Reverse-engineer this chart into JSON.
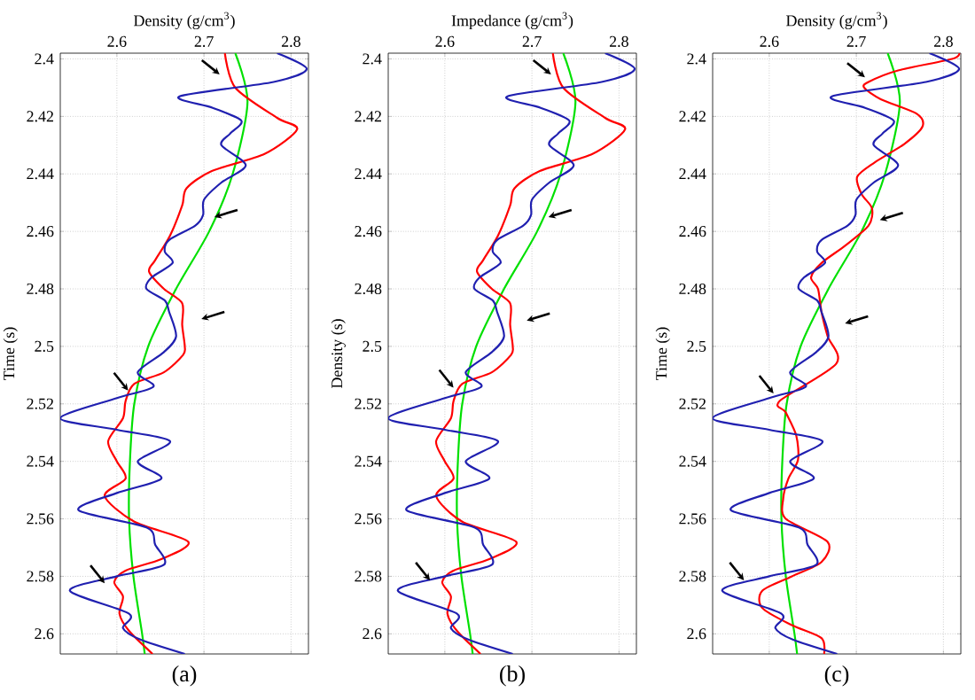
{
  "chart_data": [
    {
      "type": "line",
      "xlabel": "Density (g/cm$^{3}$)",
      "ylabel": "Time (s)",
      "annotations": [
        "(a)"
      ],
      "xlim": [
        2.535,
        2.82
      ],
      "ylim": [
        2.607,
        2.398
      ],
      "xticks": [
        2.6,
        2.7,
        2.8
      ],
      "yticks": [
        2.4,
        2.42,
        2.44,
        2.46,
        2.48,
        2.5,
        2.52,
        2.54,
        2.56,
        2.58,
        2.6
      ],
      "grid": true,
      "series": [
        {
          "color": "#00e000",
          "x": [
            2.736,
            2.75,
            2.733,
            2.706,
            2.668,
            2.636,
            2.62,
            2.615,
            2.614,
            2.619,
            2.629,
            2.632
          ],
          "values": [
            2.398,
            2.415,
            2.44,
            2.46,
            2.48,
            2.5,
            2.52,
            2.54,
            2.56,
            2.58,
            2.6,
            2.607
          ]
        },
        {
          "color": "#ff0000",
          "x": [
            2.724,
            2.736,
            2.784,
            2.807,
            2.77,
            2.709,
            2.68,
            2.675,
            2.661,
            2.644,
            2.637,
            2.654,
            2.675,
            2.675,
            2.678,
            2.676,
            2.654,
            2.62,
            2.61,
            2.607,
            2.59,
            2.6,
            2.61,
            2.586,
            2.62,
            2.682,
            2.651,
            2.61,
            2.597,
            2.607,
            2.603,
            2.614,
            2.641
          ],
          "values": [
            2.398,
            2.41,
            2.4205,
            2.4245,
            2.433,
            2.439,
            2.445,
            2.451,
            2.4615,
            2.47,
            2.474,
            2.48,
            2.485,
            2.4925,
            2.5,
            2.503,
            2.509,
            2.513,
            2.519,
            2.525,
            2.533,
            2.54,
            2.546,
            2.552,
            2.561,
            2.568,
            2.574,
            2.578,
            2.582,
            2.587,
            2.593,
            2.599,
            2.607
          ]
        },
        {
          "color": "#2020b0",
          "x": [
            2.784,
            2.818,
            2.78,
            2.672,
            2.71,
            2.743,
            2.73,
            2.72,
            2.748,
            2.72,
            2.7,
            2.699,
            2.69,
            2.66,
            2.655,
            2.664,
            2.64,
            2.634,
            2.655,
            2.66,
            2.668,
            2.654,
            2.624,
            2.642,
            2.6,
            2.535,
            2.6,
            2.661,
            2.624,
            2.651,
            2.6,
            2.556,
            2.634,
            2.644,
            2.654,
            2.6,
            2.546,
            2.614,
            2.607,
            2.627,
            2.678
          ],
          "values": [
            2.398,
            2.4035,
            2.408,
            2.413,
            2.417,
            2.4215,
            2.426,
            2.43,
            2.437,
            2.443,
            2.449,
            2.4543,
            2.458,
            2.463,
            2.467,
            2.471,
            2.476,
            2.48,
            2.484,
            2.488,
            2.4965,
            2.502,
            2.509,
            2.514,
            2.518,
            2.525,
            2.529,
            2.533,
            2.54,
            2.546,
            2.551,
            2.557,
            2.563,
            2.569,
            2.576,
            2.58,
            2.585,
            2.593,
            2.598,
            2.602,
            2.607
          ]
        }
      ]
    },
    {
      "type": "line",
      "xlabel": "Impedance (g/cm$^{3}$)",
      "ylabel": "Density (s)",
      "annotations": [
        "(b)"
      ],
      "xlim": [
        2.535,
        2.82
      ],
      "ylim": [
        2.607,
        2.398
      ],
      "xticks": [
        2.6,
        2.7,
        2.8
      ],
      "yticks": [
        2.4,
        2.42,
        2.44,
        2.46,
        2.48,
        2.5,
        2.52,
        2.54,
        2.56,
        2.58,
        2.6
      ],
      "grid": true,
      "series": [
        {
          "color": "#00e000",
          "x": [
            2.736,
            2.75,
            2.733,
            2.706,
            2.668,
            2.636,
            2.62,
            2.615,
            2.614,
            2.619,
            2.629,
            2.632
          ],
          "values": [
            2.398,
            2.415,
            2.44,
            2.46,
            2.48,
            2.5,
            2.52,
            2.54,
            2.56,
            2.58,
            2.6,
            2.607
          ]
        },
        {
          "color": "#ff0000",
          "x": [
            2.724,
            2.736,
            2.784,
            2.807,
            2.77,
            2.709,
            2.68,
            2.675,
            2.661,
            2.644,
            2.637,
            2.654,
            2.675,
            2.675,
            2.678,
            2.676,
            2.654,
            2.62,
            2.61,
            2.607,
            2.59,
            2.6,
            2.61,
            2.59,
            2.62,
            2.682,
            2.651,
            2.61,
            2.597,
            2.607,
            2.603,
            2.614,
            2.641
          ],
          "values": [
            2.398,
            2.41,
            2.4205,
            2.4245,
            2.433,
            2.439,
            2.445,
            2.451,
            2.4615,
            2.47,
            2.474,
            2.48,
            2.485,
            2.4925,
            2.5,
            2.503,
            2.509,
            2.513,
            2.519,
            2.525,
            2.533,
            2.54,
            2.546,
            2.552,
            2.561,
            2.568,
            2.574,
            2.578,
            2.582,
            2.587,
            2.593,
            2.599,
            2.607
          ]
        },
        {
          "color": "#2020b0",
          "x": [
            2.784,
            2.818,
            2.78,
            2.672,
            2.71,
            2.743,
            2.73,
            2.72,
            2.748,
            2.72,
            2.7,
            2.699,
            2.69,
            2.66,
            2.655,
            2.664,
            2.64,
            2.634,
            2.655,
            2.66,
            2.668,
            2.654,
            2.624,
            2.642,
            2.6,
            2.535,
            2.6,
            2.661,
            2.624,
            2.651,
            2.6,
            2.556,
            2.634,
            2.644,
            2.654,
            2.6,
            2.546,
            2.614,
            2.607,
            2.627,
            2.678
          ],
          "values": [
            2.398,
            2.4035,
            2.408,
            2.413,
            2.417,
            2.4215,
            2.426,
            2.43,
            2.437,
            2.443,
            2.449,
            2.4543,
            2.458,
            2.463,
            2.467,
            2.471,
            2.476,
            2.48,
            2.484,
            2.488,
            2.4965,
            2.502,
            2.509,
            2.514,
            2.518,
            2.525,
            2.529,
            2.533,
            2.54,
            2.546,
            2.551,
            2.557,
            2.563,
            2.569,
            2.576,
            2.58,
            2.585,
            2.593,
            2.598,
            2.602,
            2.607
          ]
        }
      ]
    },
    {
      "type": "line",
      "xlabel": "Density (g/cm$^{3}$)",
      "ylabel": "Time (s)",
      "annotations": [
        "(c)"
      ],
      "xlim": [
        2.535,
        2.82
      ],
      "ylim": [
        2.607,
        2.398
      ],
      "xticks": [
        2.6,
        2.7,
        2.8
      ],
      "yticks": [
        2.4,
        2.42,
        2.44,
        2.46,
        2.48,
        2.5,
        2.52,
        2.54,
        2.56,
        2.58,
        2.6
      ],
      "grid": true,
      "series": [
        {
          "color": "#00e000",
          "x": [
            2.736,
            2.75,
            2.733,
            2.706,
            2.668,
            2.636,
            2.62,
            2.615,
            2.614,
            2.619,
            2.629,
            2.632
          ],
          "values": [
            2.398,
            2.415,
            2.44,
            2.46,
            2.48,
            2.5,
            2.52,
            2.54,
            2.56,
            2.58,
            2.6,
            2.607
          ]
        },
        {
          "color": "#ff0000",
          "x": [
            2.818,
            2.81,
            2.748,
            2.714,
            2.709,
            2.728,
            2.769,
            2.776,
            2.755,
            2.721,
            2.701,
            2.706,
            2.718,
            2.714,
            2.687,
            2.66,
            2.648,
            2.656,
            2.66,
            2.667,
            2.677,
            2.612,
            2.619,
            2.631,
            2.633,
            2.622,
            2.616,
            2.619,
            2.667,
            2.66,
            2.626,
            2.592,
            2.592,
            2.626,
            2.66,
            2.663
          ],
          "values": [
            2.398,
            2.4,
            2.404,
            2.408,
            2.41,
            2.414,
            2.419,
            2.4235,
            2.4296,
            2.436,
            2.441,
            2.447,
            2.452,
            2.458,
            2.465,
            2.471,
            2.476,
            2.48,
            2.488,
            2.4965,
            2.506,
            2.519,
            2.523,
            2.531,
            2.5395,
            2.546,
            2.553,
            2.56,
            2.568,
            2.575,
            2.58,
            2.585,
            2.591,
            2.597,
            2.6015,
            2.607
          ]
        },
        {
          "color": "#2020b0",
          "x": [
            2.784,
            2.818,
            2.78,
            2.672,
            2.71,
            2.743,
            2.73,
            2.72,
            2.748,
            2.72,
            2.7,
            2.699,
            2.69,
            2.66,
            2.655,
            2.664,
            2.64,
            2.634,
            2.655,
            2.66,
            2.668,
            2.654,
            2.624,
            2.642,
            2.6,
            2.535,
            2.6,
            2.661,
            2.624,
            2.651,
            2.6,
            2.556,
            2.634,
            2.644,
            2.654,
            2.6,
            2.546,
            2.614,
            2.607,
            2.627,
            2.678
          ],
          "values": [
            2.398,
            2.4035,
            2.408,
            2.413,
            2.417,
            2.4215,
            2.426,
            2.43,
            2.437,
            2.443,
            2.449,
            2.4543,
            2.458,
            2.463,
            2.467,
            2.471,
            2.476,
            2.48,
            2.484,
            2.488,
            2.4965,
            2.502,
            2.509,
            2.514,
            2.518,
            2.525,
            2.529,
            2.533,
            2.54,
            2.546,
            2.551,
            2.557,
            2.563,
            2.569,
            2.576,
            2.58,
            2.585,
            2.593,
            2.598,
            2.602,
            2.607
          ]
        }
      ]
    }
  ]
}
